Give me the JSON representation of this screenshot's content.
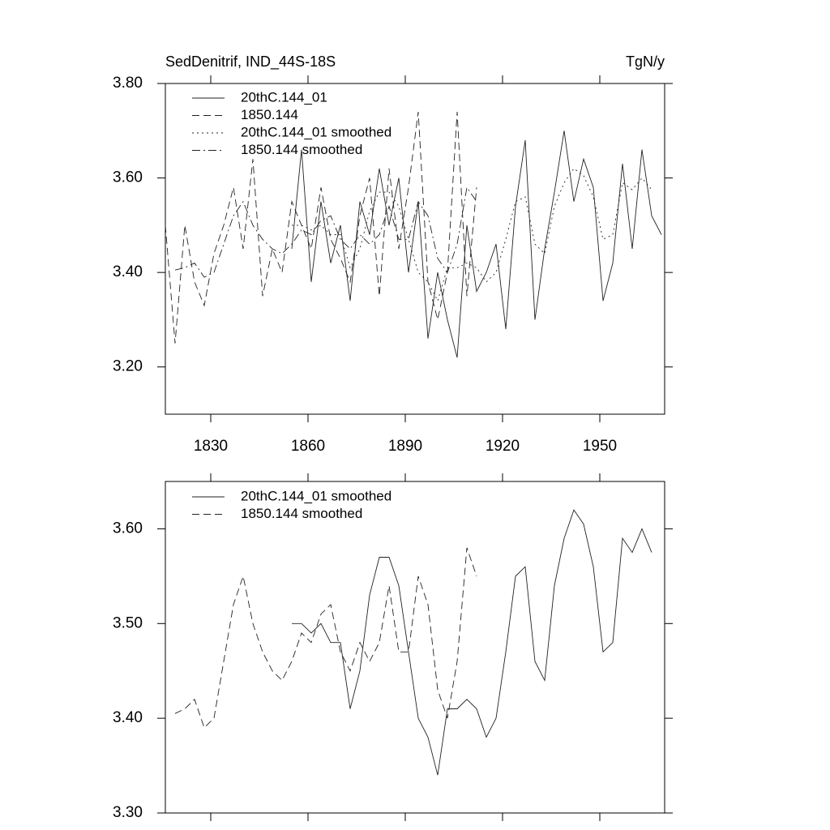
{
  "chart_data": [
    {
      "type": "line",
      "title": "SedDenitrif, IND_44S-18S",
      "units": "TgN/y",
      "x": [
        1816,
        1819,
        1822,
        1825,
        1828,
        1831,
        1834,
        1837,
        1840,
        1843,
        1846,
        1849,
        1852,
        1855,
        1858,
        1861,
        1864,
        1867,
        1870,
        1873,
        1876,
        1879,
        1882,
        1885,
        1888,
        1891,
        1894,
        1897,
        1900,
        1903,
        1906,
        1909,
        1912,
        1915,
        1918,
        1921,
        1924,
        1927,
        1930,
        1933,
        1936,
        1939,
        1942,
        1945,
        1948,
        1951,
        1954,
        1957,
        1960,
        1963,
        1966,
        1969
      ],
      "xlim": [
        1816,
        1970
      ],
      "xticks": [
        1830,
        1860,
        1890,
        1920,
        1950
      ],
      "ylim": [
        3.1,
        3.8
      ],
      "yticks": [
        {
          "value": 3.2,
          "label": "3.20"
        },
        {
          "value": 3.4,
          "label": "3.40"
        },
        {
          "value": 3.6,
          "label": "3.60"
        },
        {
          "value": 3.8,
          "label": "3.80"
        }
      ],
      "series": [
        {
          "name": "20thC.144_01",
          "color": "#222222",
          "style": "solid",
          "values": [
            null,
            null,
            null,
            null,
            null,
            null,
            null,
            null,
            null,
            null,
            null,
            null,
            null,
            3.45,
            3.66,
            3.38,
            3.55,
            3.42,
            3.5,
            3.34,
            3.55,
            3.48,
            3.62,
            3.5,
            3.6,
            3.4,
            3.55,
            3.26,
            3.4,
            3.3,
            3.22,
            3.5,
            3.36,
            3.4,
            3.46,
            3.28,
            3.54,
            3.68,
            3.3,
            3.45,
            3.57,
            3.7,
            3.55,
            3.64,
            3.58,
            3.34,
            3.42,
            3.63,
            3.45,
            3.66,
            3.52,
            3.48
          ]
        },
        {
          "name": "1850.144",
          "color": "#222222",
          "style": "dashed",
          "values": [
            3.5,
            3.25,
            3.5,
            3.38,
            3.33,
            3.44,
            3.5,
            3.58,
            3.45,
            3.64,
            3.35,
            3.45,
            3.4,
            3.55,
            3.5,
            3.45,
            3.58,
            3.47,
            3.43,
            3.38,
            3.52,
            3.6,
            3.35,
            3.62,
            3.45,
            3.58,
            3.74,
            3.38,
            3.3,
            3.4,
            3.74,
            3.35,
            3.58,
            null,
            null,
            null,
            null,
            null,
            null,
            null,
            null,
            null,
            null,
            null,
            null,
            null,
            null,
            null,
            null,
            null,
            null,
            null
          ]
        },
        {
          "name": "20thC.144_01 smoothed",
          "color": "#222222",
          "style": "dotted",
          "values": [
            null,
            null,
            null,
            null,
            null,
            null,
            null,
            null,
            null,
            null,
            null,
            null,
            null,
            3.5,
            3.5,
            3.49,
            3.5,
            3.48,
            3.48,
            3.41,
            3.45,
            3.53,
            3.57,
            3.57,
            3.54,
            3.47,
            3.4,
            3.38,
            3.34,
            3.41,
            3.41,
            3.42,
            3.41,
            3.38,
            3.4,
            3.47,
            3.55,
            3.56,
            3.46,
            3.44,
            3.54,
            3.59,
            3.62,
            3.605,
            3.56,
            3.47,
            3.48,
            3.59,
            3.575,
            3.6,
            3.575,
            null
          ]
        },
        {
          "name": "1850.144 smoothed",
          "color": "#222222",
          "style": "dashdot",
          "values": [
            null,
            3.405,
            3.41,
            3.42,
            3.39,
            3.4,
            3.46,
            3.52,
            3.55,
            3.5,
            3.47,
            3.45,
            3.44,
            3.46,
            3.49,
            3.48,
            3.51,
            3.52,
            3.47,
            3.45,
            3.48,
            3.46,
            3.48,
            3.54,
            3.47,
            3.47,
            3.55,
            3.52,
            3.43,
            3.4,
            3.46,
            3.58,
            3.55,
            null,
            null,
            null,
            null,
            null,
            null,
            null,
            null,
            null,
            null,
            null,
            null,
            null,
            null,
            null,
            null,
            null,
            null,
            null
          ]
        }
      ]
    },
    {
      "type": "line",
      "x": [
        1816,
        1819,
        1822,
        1825,
        1828,
        1831,
        1834,
        1837,
        1840,
        1843,
        1846,
        1849,
        1852,
        1855,
        1858,
        1861,
        1864,
        1867,
        1870,
        1873,
        1876,
        1879,
        1882,
        1885,
        1888,
        1891,
        1894,
        1897,
        1900,
        1903,
        1906,
        1909,
        1912,
        1915,
        1918,
        1921,
        1924,
        1927,
        1930,
        1933,
        1936,
        1939,
        1942,
        1945,
        1948,
        1951,
        1954,
        1957,
        1960,
        1963,
        1966,
        1969
      ],
      "xlim": [
        1816,
        1970
      ],
      "xticks": [
        1830,
        1860,
        1890,
        1920,
        1950
      ],
      "ylim": [
        3.3,
        3.65
      ],
      "yticks": [
        {
          "value": 3.3,
          "label": "3.30"
        },
        {
          "value": 3.4,
          "label": "3.40"
        },
        {
          "value": 3.5,
          "label": "3.50"
        },
        {
          "value": 3.6,
          "label": "3.60"
        }
      ],
      "series": [
        {
          "name": "20thC.144_01 smoothed",
          "color": "#222222",
          "style": "solid",
          "values": [
            null,
            null,
            null,
            null,
            null,
            null,
            null,
            null,
            null,
            null,
            null,
            null,
            null,
            3.5,
            3.5,
            3.49,
            3.5,
            3.48,
            3.48,
            3.41,
            3.45,
            3.53,
            3.57,
            3.57,
            3.54,
            3.47,
            3.4,
            3.38,
            3.34,
            3.41,
            3.41,
            3.42,
            3.41,
            3.38,
            3.4,
            3.47,
            3.55,
            3.56,
            3.46,
            3.44,
            3.54,
            3.59,
            3.62,
            3.605,
            3.56,
            3.47,
            3.48,
            3.59,
            3.575,
            3.6,
            3.575,
            null
          ]
        },
        {
          "name": "1850.144 smoothed",
          "color": "#222222",
          "style": "dashed",
          "values": [
            null,
            3.405,
            3.41,
            3.42,
            3.39,
            3.4,
            3.46,
            3.52,
            3.55,
            3.5,
            3.47,
            3.45,
            3.44,
            3.46,
            3.49,
            3.48,
            3.51,
            3.52,
            3.47,
            3.45,
            3.48,
            3.46,
            3.48,
            3.54,
            3.47,
            3.47,
            3.55,
            3.52,
            3.43,
            3.4,
            3.46,
            3.58,
            3.55,
            null,
            null,
            null,
            null,
            null,
            null,
            null,
            null,
            null,
            null,
            null,
            null,
            null,
            null,
            null,
            null,
            null,
            null,
            null
          ]
        }
      ]
    }
  ]
}
